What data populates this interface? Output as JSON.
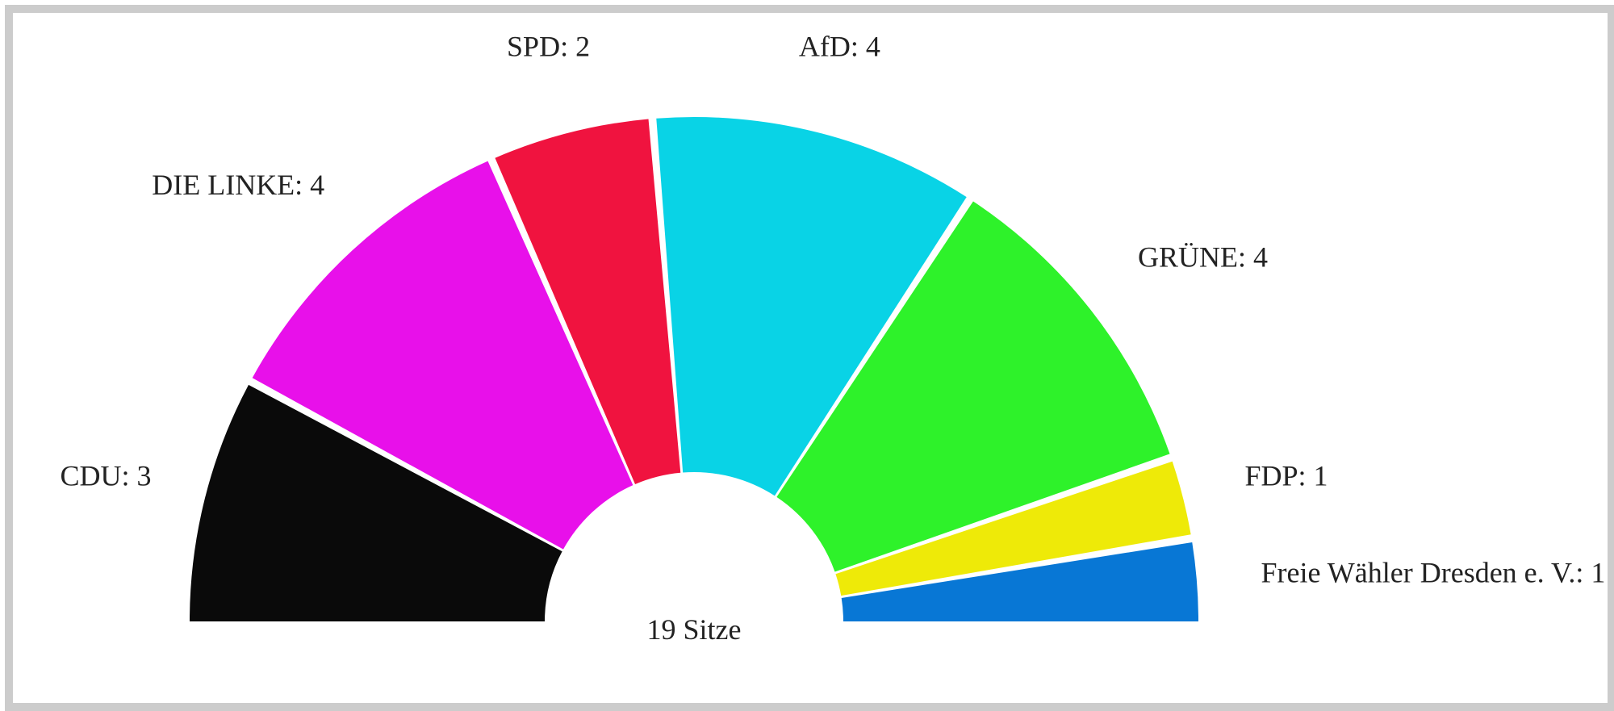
{
  "chart_data": {
    "type": "pie",
    "subtype": "parliament-semicircle",
    "center_label": "19 Sitze",
    "total_seats": 19,
    "categories": [
      "CDU",
      "DIE LINKE",
      "SPD",
      "AfD",
      "GRÜNE",
      "FDP",
      "Freie Wähler Dresden e. V."
    ],
    "values": [
      3,
      4,
      2,
      4,
      4,
      1,
      1
    ],
    "labels": [
      "CDU: 3",
      "DIE LINKE: 4",
      "SPD: 2",
      "AfD: 4",
      "GRÜNE: 4",
      "FDP: 1",
      "Freie Wähler Dresden e. V.: 1"
    ],
    "colors": [
      "#0a0a0a",
      "#e810ea",
      "#f0133f",
      "#09d3e6",
      "#2ef22a",
      "#eeea08",
      "#0877d5"
    ],
    "legend": "none",
    "grid": false
  }
}
